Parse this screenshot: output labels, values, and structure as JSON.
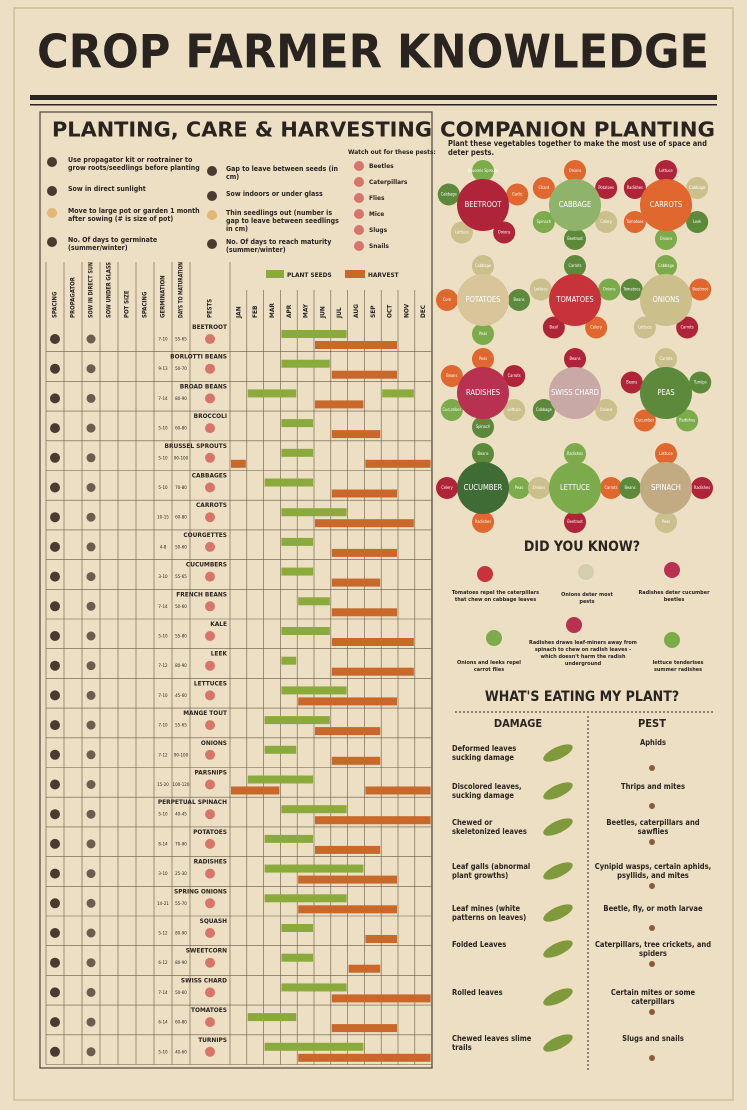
{
  "header": {
    "title": "CROP FARMER KNOWLEDGE",
    "left_heading": "PLANTING, CARE & HARVESTING",
    "right_heading": "COMPANION PLANTING"
  },
  "key": {
    "items": [
      "Use propagator kit or rootrainer to grow roots/seedlings before planting",
      "Sow in direct sunlight",
      "Move to large pot or garden 1 month after sowing (# is size of pot)",
      "No. Of days to germinate (summer/winter)",
      "Gap to leave between seeds (in cm)",
      "Sow indoors or under glass",
      "Thin seedlings out (number is gap to leave between seedlings in cm)",
      "No. Of days to reach maturity (summer/winter)"
    ],
    "pests_title": "Watch out for these pests:",
    "pests": [
      "Beetles",
      "Caterpillars",
      "Flies",
      "Mice",
      "Slugs",
      "Snails"
    ]
  },
  "calendar": {
    "legend": {
      "sow": "PLANT SEEDS",
      "harvest": "HARVEST"
    },
    "columns": [
      "SPACING",
      "PROPAGATOR",
      "SOW IN DIRECT SUN",
      "SOW UNDER GLASS",
      "POT SIZE",
      "SPACING",
      "GERMINATION",
      "DAYS TO MATURATION",
      "PESTS"
    ],
    "months": [
      "JAN",
      "FEB",
      "MAR",
      "APR",
      "MAY",
      "JUN",
      "JUL",
      "AUG",
      "SEP",
      "OCT",
      "NOV",
      "DEC"
    ],
    "crops": [
      {
        "name": "BEETROOT",
        "germination": "7-10",
        "days": "55-65",
        "sow": [
          [
            4,
            7
          ]
        ],
        "harvest": [
          [
            6,
            10
          ]
        ]
      },
      {
        "name": "BORLOTTI BEANS",
        "germination": "9-13",
        "days": "50-70",
        "sow": [
          [
            4,
            6
          ]
        ],
        "harvest": [
          [
            7,
            10
          ]
        ]
      },
      {
        "name": "BROAD BEANS",
        "germination": "7-14",
        "days": "80-90",
        "sow": [
          [
            2,
            4
          ],
          [
            10,
            11
          ]
        ],
        "harvest": [
          [
            6,
            8
          ]
        ]
      },
      {
        "name": "BROCCOLI",
        "germination": "5-10",
        "days": "60-80",
        "sow": [
          [
            4,
            5
          ]
        ],
        "harvest": [
          [
            7,
            9
          ]
        ]
      },
      {
        "name": "BRUSSEL SPROUTS",
        "germination": "5-10",
        "days": "90-100",
        "sow": [
          [
            4,
            5
          ]
        ],
        "harvest": [
          [
            1,
            1
          ],
          [
            9,
            12
          ]
        ]
      },
      {
        "name": "CABBAGES",
        "germination": "5-10",
        "days": "70-80",
        "sow": [
          [
            3,
            5
          ]
        ],
        "harvest": [
          [
            7,
            10
          ]
        ]
      },
      {
        "name": "CARROTS",
        "germination": "10-15",
        "days": "60-80",
        "sow": [
          [
            4,
            7
          ]
        ],
        "harvest": [
          [
            6,
            11
          ]
        ]
      },
      {
        "name": "COURGETTES",
        "germination": "4-8",
        "days": "50-60",
        "sow": [
          [
            4,
            5
          ]
        ],
        "harvest": [
          [
            7,
            10
          ]
        ]
      },
      {
        "name": "CUCUMBERS",
        "germination": "3-10",
        "days": "55-65",
        "sow": [
          [
            4,
            5
          ]
        ],
        "harvest": [
          [
            7,
            9
          ]
        ]
      },
      {
        "name": "FRENCH BEANS",
        "germination": "7-14",
        "days": "50-60",
        "sow": [
          [
            5,
            6
          ]
        ],
        "harvest": [
          [
            7,
            10
          ]
        ]
      },
      {
        "name": "KALE",
        "germination": "5-10",
        "days": "55-80",
        "sow": [
          [
            4,
            6
          ]
        ],
        "harvest": [
          [
            7,
            11
          ]
        ]
      },
      {
        "name": "LEEK",
        "germination": "7-12",
        "days": "80-90",
        "sow": [
          [
            4,
            4
          ]
        ],
        "harvest": [
          [
            7,
            11
          ]
        ]
      },
      {
        "name": "LETTUCES",
        "germination": "7-10",
        "days": "45-60",
        "sow": [
          [
            4,
            7
          ]
        ],
        "harvest": [
          [
            5,
            10
          ]
        ]
      },
      {
        "name": "MANGE TOUT",
        "germination": "7-10",
        "days": "55-65",
        "sow": [
          [
            3,
            6
          ]
        ],
        "harvest": [
          [
            6,
            9
          ]
        ]
      },
      {
        "name": "ONIONS",
        "germination": "7-12",
        "days": "90-100",
        "sow": [
          [
            3,
            4
          ]
        ],
        "harvest": [
          [
            7,
            9
          ]
        ]
      },
      {
        "name": "PARSNIPS",
        "germination": "15-20",
        "days": "100-120",
        "sow": [
          [
            2,
            5
          ]
        ],
        "harvest": [
          [
            1,
            3
          ],
          [
            9,
            12
          ]
        ]
      },
      {
        "name": "PERPETUAL SPINACH",
        "germination": "5-10",
        "days": "40-45",
        "sow": [
          [
            4,
            7
          ]
        ],
        "harvest": [
          [
            6,
            12
          ]
        ]
      },
      {
        "name": "POTATOES",
        "germination": "8-14",
        "days": "70-90",
        "sow": [
          [
            3,
            5
          ]
        ],
        "harvest": [
          [
            6,
            9
          ]
        ]
      },
      {
        "name": "RADISHES",
        "germination": "3-10",
        "days": "25-30",
        "sow": [
          [
            3,
            8
          ]
        ],
        "harvest": [
          [
            5,
            10
          ]
        ]
      },
      {
        "name": "SPRING ONIONS",
        "germination": "14-21",
        "days": "55-70",
        "sow": [
          [
            3,
            7
          ]
        ],
        "harvest": [
          [
            5,
            10
          ]
        ]
      },
      {
        "name": "SQUASH",
        "germination": "5-12",
        "days": "80-90",
        "sow": [
          [
            4,
            5
          ]
        ],
        "harvest": [
          [
            9,
            10
          ]
        ]
      },
      {
        "name": "SWEETCORN",
        "germination": "6-12",
        "days": "80-90",
        "sow": [
          [
            4,
            5
          ]
        ],
        "harvest": [
          [
            8,
            9
          ]
        ]
      },
      {
        "name": "SWISS CHARD",
        "germination": "7-14",
        "days": "50-60",
        "sow": [
          [
            4,
            7
          ]
        ],
        "harvest": [
          [
            7,
            12
          ]
        ]
      },
      {
        "name": "TOMATOES",
        "germination": "6-14",
        "days": "60-80",
        "sow": [
          [
            2,
            4
          ]
        ],
        "harvest": [
          [
            7,
            10
          ]
        ]
      },
      {
        "name": "TURNIPS",
        "germination": "5-10",
        "days": "40-60",
        "sow": [
          [
            3,
            8
          ]
        ],
        "harvest": [
          [
            5,
            12
          ]
        ]
      }
    ]
  },
  "companion": {
    "subtitle": "Plant these vegetables together to make the most use of space and deter pests.",
    "plants": [
      {
        "name": "BEETROOT",
        "color": "#b0243a",
        "neighbors": [
          "Brussels Sprouts",
          "Garlic",
          "Onions",
          "Lettuce",
          "Cabbage"
        ]
      },
      {
        "name": "CABBAGE",
        "color": "#8fb36a",
        "neighbors": [
          "Onions",
          "Potatoes",
          "Celery",
          "Beetroot",
          "Spinach",
          "Chard"
        ]
      },
      {
        "name": "CARROTS",
        "color": "#e0672e",
        "neighbors": [
          "Lettuce",
          "Cabbage",
          "Leek",
          "Onions",
          "Tomatoes",
          "Radishes"
        ]
      },
      {
        "name": "POTATOES",
        "color": "#d8c59a",
        "neighbors": [
          "Cabbage",
          "Beans",
          "Peas",
          "Corn"
        ]
      },
      {
        "name": "TOMATOES",
        "color": "#c8333b",
        "neighbors": [
          "Carrots",
          "Onions",
          "Celery",
          "Basil",
          "Lettuce"
        ]
      },
      {
        "name": "ONIONS",
        "color": "#cbbf8c",
        "neighbors": [
          "Cabbage",
          "Beetroot",
          "Carrots",
          "Lettuce",
          "Tomatoes"
        ]
      },
      {
        "name": "RADISHES",
        "color": "#b83150",
        "neighbors": [
          "Peas",
          "Carrots",
          "Lettuce",
          "Spinach",
          "Cucumber",
          "Beans"
        ]
      },
      {
        "name": "SWISS CHARD",
        "color": "#c9a9a6",
        "neighbors": [
          "Beans",
          "Onions",
          "Cabbage"
        ]
      },
      {
        "name": "PEAS",
        "color": "#5c8a3a",
        "neighbors": [
          "Carrots",
          "Turnips",
          "Radishes",
          "Cucumber",
          "Beans"
        ]
      },
      {
        "name": "CUCUMBER",
        "color": "#3f6b35",
        "neighbors": [
          "Beans",
          "Peas",
          "Radishes",
          "Celery"
        ]
      },
      {
        "name": "LETTUCE",
        "color": "#7cab4b",
        "neighbors": [
          "Radishes",
          "Carrots",
          "Beetroot",
          "Onions"
        ]
      },
      {
        "name": "SPINACH",
        "color": "#c2ab82",
        "neighbors": [
          "Lettuce",
          "Radishes",
          "Peas",
          "Beans"
        ]
      }
    ]
  },
  "did_you_know": {
    "title": "DID YOU KNOW?",
    "facts": [
      "Tomatoes repel the caterpillars that chew on cabbage leaves",
      "Onions deter most pests",
      "Radishes deter cucumber beetles",
      "Onions and leeks repel carrot flies",
      "Radishes draws leaf-miners away from spinach to chew on radish leaves - which doesn't harm the radish underground",
      "lettuce tenderises summer radishes"
    ]
  },
  "eating": {
    "title": "WHAT'S EATING MY PLANT?",
    "headers": [
      "DAMAGE",
      "PEST"
    ],
    "rows": [
      [
        "Deformed leaves sucking damage",
        "Aphids"
      ],
      [
        "Discolored leaves, sucking damage",
        "Thrips and mites"
      ],
      [
        "Chewed or skeletonized leaves",
        "Beetles, caterpillars and sawflies"
      ],
      [
        "Leaf galls (abnormal plant growths)",
        "Cynipid wasps, certain aphids, psyllids, and mites"
      ],
      [
        "Leaf mines (white patterns on leaves)",
        "Beetle, fly, or moth larvae"
      ],
      [
        "Folded Leaves",
        "Caterpillars, tree crickets, and spiders"
      ],
      [
        "Rolled leaves",
        "Certain mites or some caterpillars"
      ],
      [
        "Chewed leaves slime trails",
        "Slugs and snails"
      ]
    ]
  }
}
